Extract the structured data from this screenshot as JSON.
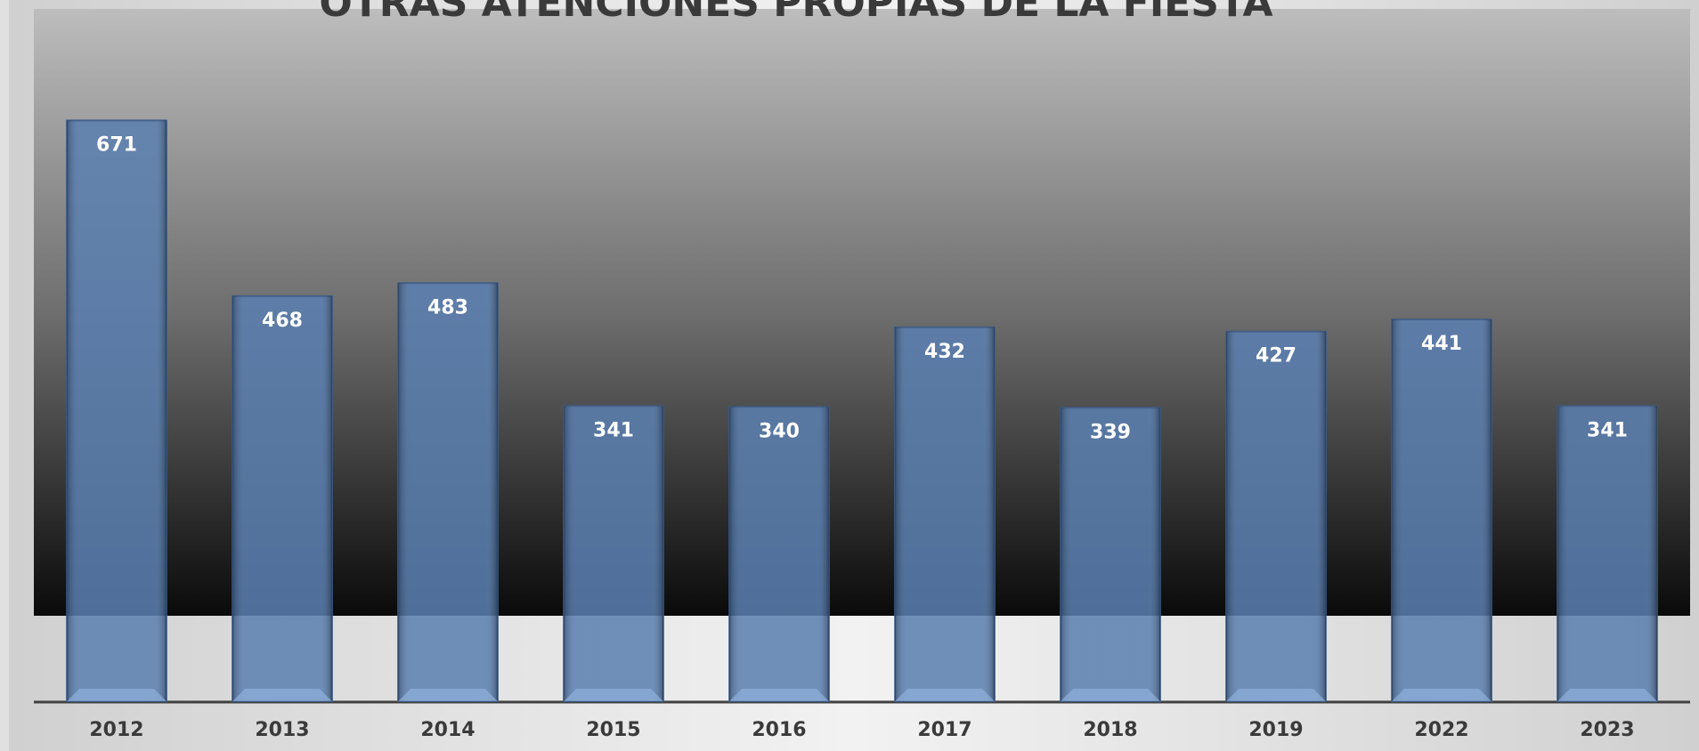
{
  "chart_data": {
    "type": "bar",
    "title": "OTRAS ATENCIONES PROPIAS DE LA FIESTA",
    "categories": [
      "2012",
      "2013",
      "2014",
      "2015",
      "2016",
      "2017",
      "2018",
      "2019",
      "2022",
      "2023"
    ],
    "values": [
      671,
      468,
      483,
      341,
      340,
      432,
      339,
      427,
      441,
      341
    ],
    "color": "#4a72a8",
    "ylim": [
      0,
      800
    ]
  }
}
